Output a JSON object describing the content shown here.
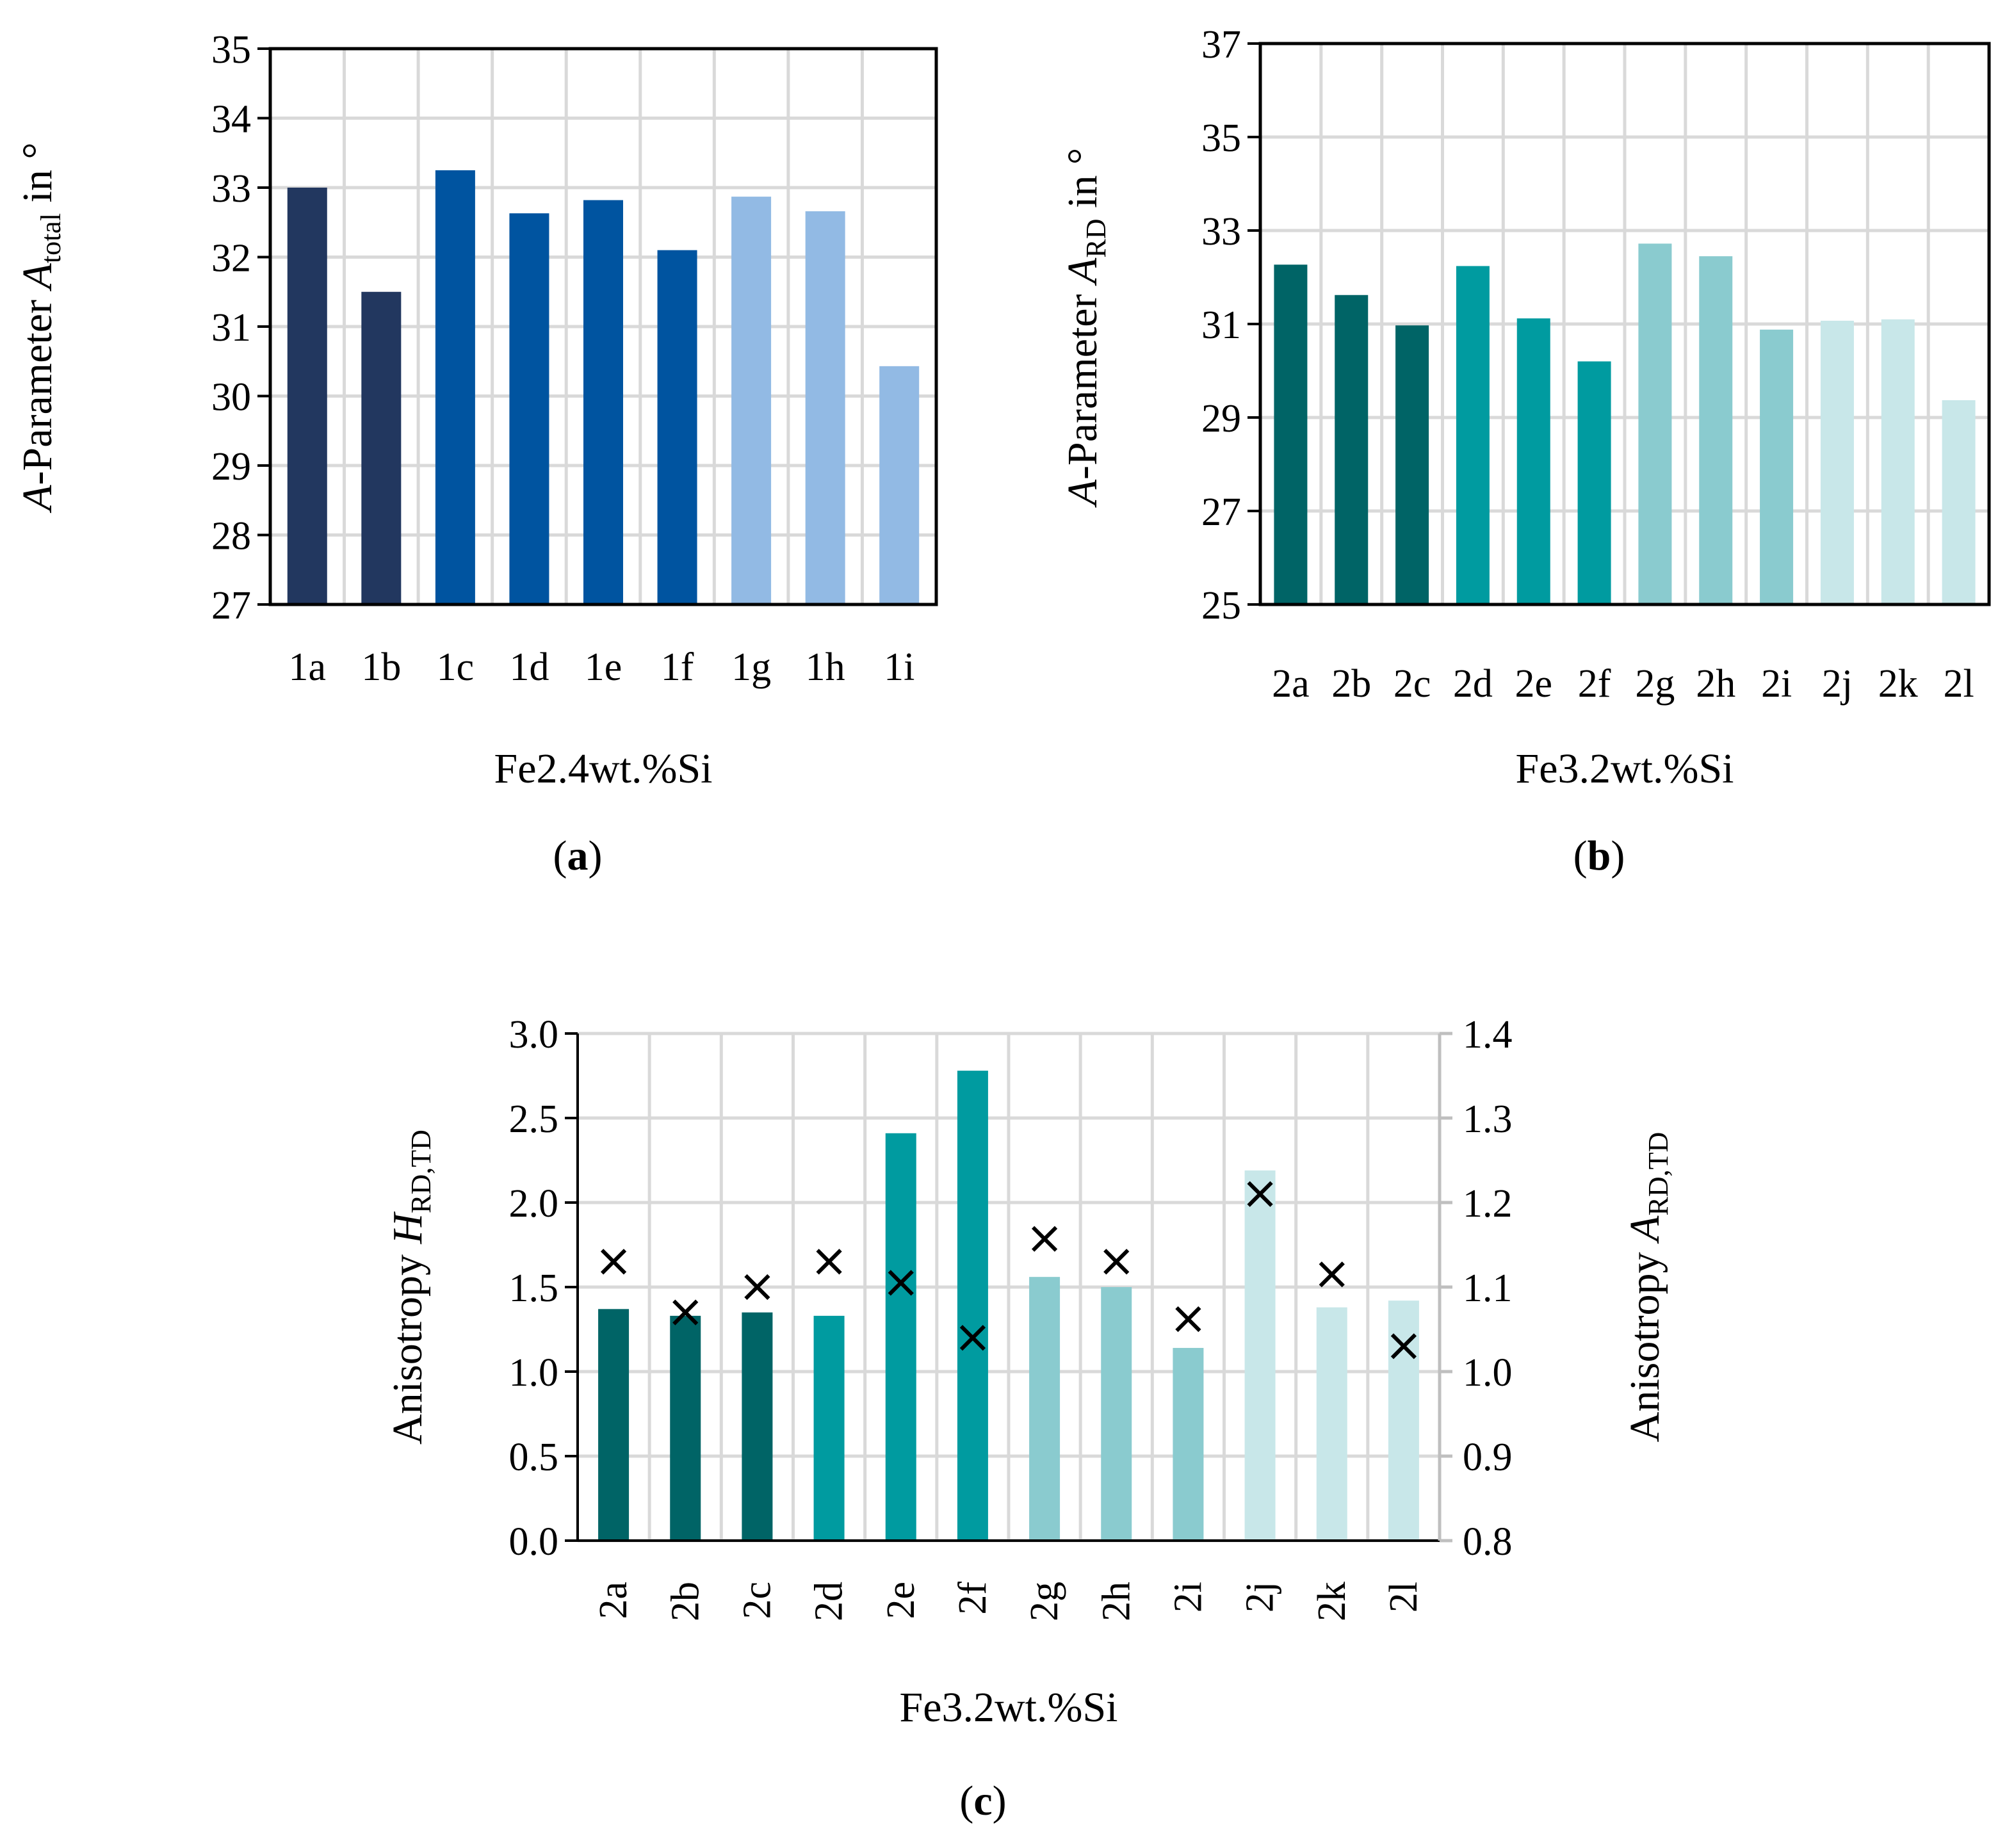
{
  "chart_data": [
    {
      "panel": "a",
      "panel_label": "a",
      "type": "bar",
      "categories": [
        "1a",
        "1b",
        "1c",
        "1d",
        "1e",
        "1f",
        "1g",
        "1h",
        "1i"
      ],
      "values": [
        33.0,
        31.5,
        33.25,
        32.63,
        32.82,
        32.1,
        32.87,
        32.66,
        30.43
      ],
      "colors": [
        "#22375f",
        "#22375f",
        "#0054a0",
        "#0054a0",
        "#0054a0",
        "#0054a0",
        "#92bae4",
        "#92bae4",
        "#92bae4"
      ],
      "ylim": [
        27,
        35
      ],
      "yticks": [
        27,
        28,
        29,
        30,
        31,
        32,
        33,
        34,
        35
      ],
      "ylabel": {
        "prefix": "A",
        "text": "-Parameter ",
        "var": "A",
        "sub": "total",
        "suffix": " in °"
      },
      "xlabel": "Fe2.4wt.%Si",
      "grid": true
    },
    {
      "panel": "b",
      "panel_label": "b",
      "type": "bar",
      "categories": [
        "2a",
        "2b",
        "2c",
        "2d",
        "2e",
        "2f",
        "2g",
        "2h",
        "2i",
        "2j",
        "2k",
        "2l"
      ],
      "values": [
        32.27,
        31.62,
        30.97,
        32.24,
        31.12,
        30.2,
        32.72,
        32.45,
        30.88,
        31.07,
        31.1,
        29.37
      ],
      "colors": [
        "#006466",
        "#006466",
        "#006466",
        "#009ba0",
        "#009ba0",
        "#009ba0",
        "#8acbcf",
        "#8acbcf",
        "#8acbcf",
        "#c8e7e9",
        "#c8e7e9",
        "#c8e7e9"
      ],
      "ylim": [
        25,
        37
      ],
      "yticks": [
        25,
        27,
        29,
        31,
        33,
        35,
        37
      ],
      "ylabel": {
        "prefix": "A",
        "text": "-Parameter ",
        "var": "A",
        "sub": "RD",
        "suffix": " in °"
      },
      "xlabel": "Fe3.2wt.%Si",
      "grid": true
    },
    {
      "panel": "c",
      "panel_label": "c",
      "type": "bar",
      "categories": [
        "2a",
        "2b",
        "2c",
        "2d",
        "2e",
        "2f",
        "2g",
        "2h",
        "2i",
        "2j",
        "2k",
        "2l"
      ],
      "values": [
        1.37,
        1.33,
        1.35,
        1.33,
        2.41,
        2.78,
        1.56,
        1.5,
        1.14,
        2.19,
        1.38,
        1.42
      ],
      "colors": [
        "#006466",
        "#006466",
        "#006466",
        "#009ba0",
        "#009ba0",
        "#009ba0",
        "#8acbcf",
        "#8acbcf",
        "#8acbcf",
        "#c8e7e9",
        "#c8e7e9",
        "#c8e7e9"
      ],
      "ylim": [
        0,
        3.0
      ],
      "yticks": [
        "0.0",
        "0.5",
        "1.0",
        "1.5",
        "2.0",
        "2.5",
        "3.0"
      ],
      "ylabel": {
        "text": "Anisotropy ",
        "var": "H",
        "sub": "RD,TD"
      },
      "secondary": {
        "type": "scatter",
        "marker": "x",
        "values": [
          1.13,
          1.07,
          1.1,
          1.13,
          1.105,
          1.04,
          1.157,
          1.13,
          1.062,
          1.21,
          1.115,
          1.03
        ],
        "ylim": [
          0.8,
          1.4
        ],
        "yticks": [
          "0.8",
          "0.9",
          "1.0",
          "1.1",
          "1.2",
          "1.3",
          "1.4"
        ],
        "ylabel": {
          "text": "Anisotropy ",
          "var": "A",
          "sub": "RD,TD"
        }
      },
      "xlabel": "Fe3.2wt.%Si",
      "grid": true
    }
  ]
}
